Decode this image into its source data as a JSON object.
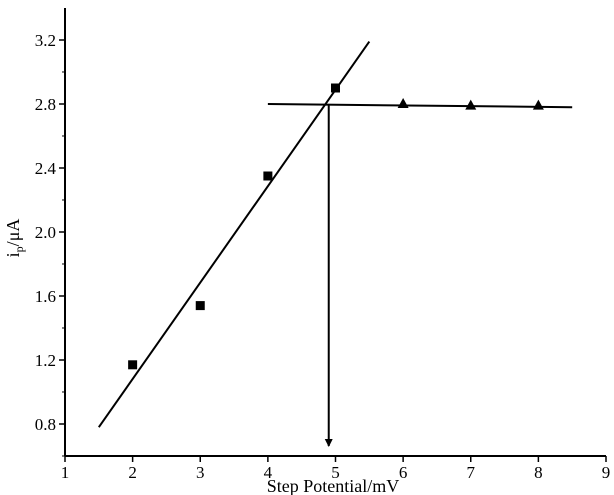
{
  "chart_data": {
    "type": "scatter",
    "title": "",
    "xlabel": "Step Potential/mV",
    "ylabel": {
      "main": "i",
      "sub": "p",
      "unit": "/μA"
    },
    "xlim": [
      1,
      9
    ],
    "ylim": [
      0.6,
      3.4
    ],
    "xticks": [
      1,
      2,
      3,
      4,
      5,
      6,
      7,
      8,
      9
    ],
    "yticks": [
      0.8,
      1.2,
      1.6,
      2.0,
      2.4,
      2.8,
      3.2
    ],
    "xtick_labels": [
      "1",
      "2",
      "3",
      "4",
      "5",
      "6",
      "7",
      "8",
      "9"
    ],
    "ytick_labels": [
      "0.8",
      "1.2",
      "1.6",
      "2.0",
      "2.4",
      "2.8",
      "3.2"
    ],
    "grid": false,
    "series": [
      {
        "marker": "square",
        "x": [
          2,
          3,
          4,
          5
        ],
        "y": [
          1.17,
          1.54,
          2.35,
          2.9
        ]
      },
      {
        "marker": "triangle",
        "x": [
          6,
          7,
          8
        ],
        "y": [
          2.8,
          2.79,
          2.79
        ]
      }
    ],
    "fit_lines": [
      {
        "x": [
          1.5,
          5.5
        ],
        "y": [
          0.78,
          3.19
        ]
      },
      {
        "x": [
          4.0,
          8.5
        ],
        "y": [
          2.8,
          2.78
        ]
      }
    ],
    "annotation_arrow": {
      "x": 4.9,
      "y_from": 2.8,
      "y_to": 0.6
    }
  }
}
